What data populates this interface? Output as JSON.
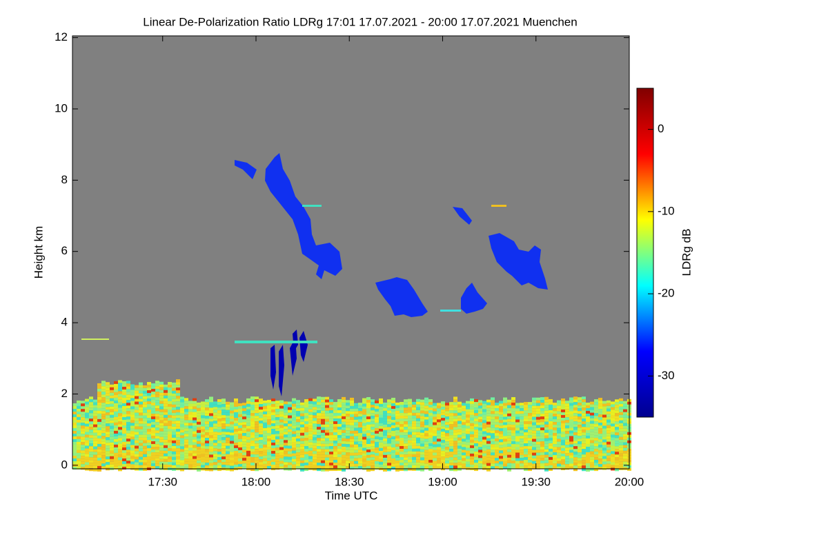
{
  "chart_data": {
    "type": "heatmap",
    "title": "Linear De-Polarization Ratio LDRg   17:01 17.07.2021 - 20:00 17.07.2021 Muenchen",
    "xlabel": "Time UTC",
    "ylabel": "Height km",
    "colorbar_label": "LDRg dB",
    "xlim": [
      17.0167,
      20.0
    ],
    "xticks": [
      {
        "value": 17.5,
        "label": "17:30"
      },
      {
        "value": 18.0,
        "label": "18:00"
      },
      {
        "value": 18.5,
        "label": "18:30"
      },
      {
        "value": 19.0,
        "label": "19:00"
      },
      {
        "value": 19.5,
        "label": "19:30"
      },
      {
        "value": 20.0,
        "label": "20:00"
      }
    ],
    "ylim": [
      -0.1,
      12.05
    ],
    "yticks": [
      0,
      2,
      4,
      6,
      8,
      10,
      12
    ],
    "clim": [
      -35,
      5
    ],
    "cticks": [
      0,
      -10,
      -20,
      -30
    ],
    "colormap": [
      "#00008f",
      "#0000ff",
      "#00ffff",
      "#ffff00",
      "#ff0000",
      "#800000"
    ],
    "background_color": "#808080"
  }
}
